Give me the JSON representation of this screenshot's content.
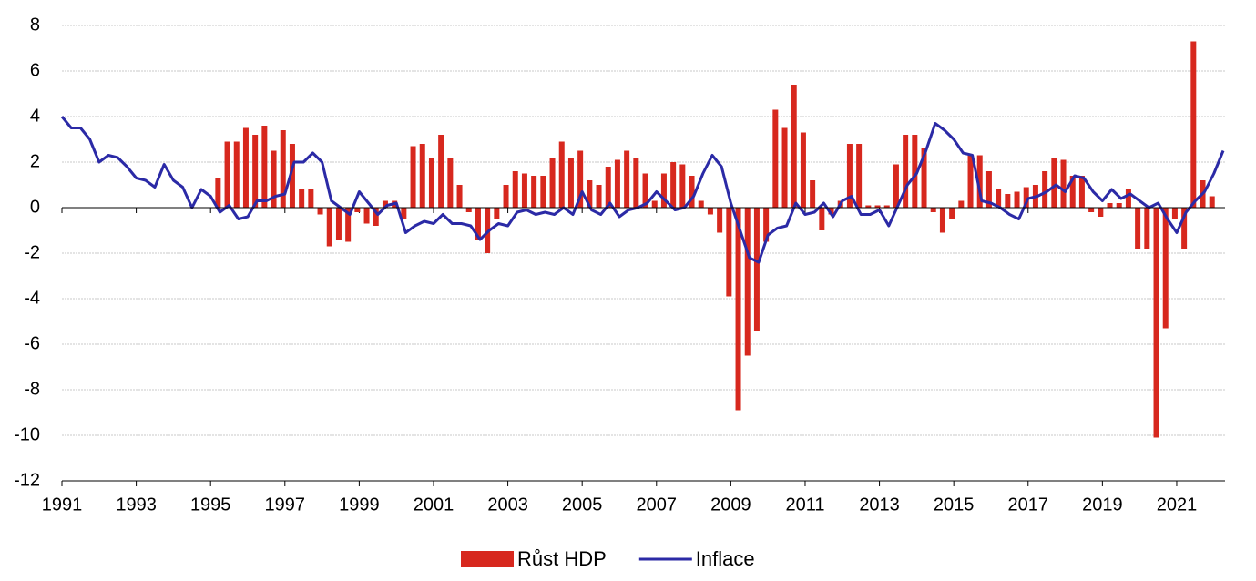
{
  "chart_data": {
    "type": "bar-line",
    "series": [
      {
        "name": "Růst HDP",
        "type": "bar",
        "color": "#d7281e",
        "x": [
          1995.2,
          1995.45,
          1995.7,
          1995.95,
          1996.2,
          1996.45,
          1996.7,
          1996.95,
          1997.2,
          1997.45,
          1997.7,
          1997.95,
          1998.2,
          1998.45,
          1998.7,
          1998.95,
          1999.2,
          1999.45,
          1999.7,
          1999.95,
          2000.2,
          2000.45,
          2000.7,
          2000.95,
          2001.2,
          2001.45,
          2001.7,
          2001.95,
          2002.2,
          2002.45,
          2002.7,
          2002.95,
          2003.2,
          2003.45,
          2003.7,
          2003.95,
          2004.2,
          2004.45,
          2004.7,
          2004.95,
          2005.2,
          2005.45,
          2005.7,
          2005.95,
          2006.2,
          2006.45,
          2006.7,
          2006.95,
          2007.2,
          2007.45,
          2007.7,
          2007.95,
          2008.2,
          2008.45,
          2008.7,
          2008.95,
          2009.2,
          2009.45,
          2009.7,
          2009.95,
          2010.2,
          2010.45,
          2010.7,
          2010.95,
          2011.2,
          2011.45,
          2011.7,
          2011.95,
          2012.2,
          2012.45,
          2012.7,
          2012.95,
          2013.2,
          2013.45,
          2013.7,
          2013.95,
          2014.2,
          2014.45,
          2014.7,
          2014.95,
          2015.2,
          2015.45,
          2015.7,
          2015.95,
          2016.2,
          2016.45,
          2016.7,
          2016.95,
          2017.2,
          2017.45,
          2017.7,
          2017.95,
          2018.2,
          2018.45,
          2018.7,
          2018.95,
          2019.2,
          2019.45,
          2019.7,
          2019.95,
          2020.2,
          2020.45,
          2020.7,
          2020.95,
          2021.2,
          2021.45,
          2021.7,
          2021.95
        ],
        "values": [
          1.3,
          2.9,
          2.9,
          3.5,
          3.2,
          3.6,
          2.5,
          3.4,
          2.8,
          0.8,
          0.8,
          -0.3,
          -1.7,
          -1.4,
          -1.5,
          -0.2,
          -0.7,
          -0.8,
          0.3,
          0.3,
          -0.5,
          2.7,
          2.8,
          2.2,
          3.2,
          2.2,
          1.0,
          -0.2,
          -1.4,
          -2.0,
          -0.5,
          1.0,
          1.6,
          1.5,
          1.4,
          1.4,
          2.2,
          2.9,
          2.2,
          2.5,
          1.2,
          1.0,
          1.8,
          2.1,
          2.5,
          2.2,
          1.5,
          0.3,
          1.5,
          2.0,
          1.9,
          1.4,
          0.3,
          -0.3,
          -1.1,
          -3.9,
          -8.9,
          -6.5,
          -5.4,
          -1.5,
          4.3,
          3.5,
          5.4,
          3.3,
          1.2,
          -1.0,
          -0.3,
          0.3,
          2.8,
          2.8,
          0.1,
          0.1,
          0.1,
          1.9,
          3.2,
          3.2,
          2.6,
          -0.2,
          -1.1,
          -0.5,
          0.3,
          2.3,
          2.3,
          1.6,
          0.8,
          0.6,
          0.7,
          0.9,
          1.0,
          1.6,
          2.2,
          2.1,
          1.4,
          1.4,
          -0.2,
          -0.4,
          0.2,
          0.2,
          0.8,
          -1.8,
          -1.8,
          -10.1,
          -5.3,
          -0.5,
          -1.8,
          7.3,
          1.2,
          0.5
        ]
      },
      {
        "name": "Inflace",
        "type": "line",
        "color": "#2b2aa6",
        "x": [
          1991,
          1991.25,
          1991.5,
          1991.75,
          1992,
          1992.25,
          1992.5,
          1992.75,
          1993,
          1993.25,
          1993.5,
          1993.75,
          1994,
          1994.25,
          1994.5,
          1994.75,
          1995,
          1995.25,
          1995.5,
          1995.75,
          1996,
          1996.25,
          1996.5,
          1996.75,
          1997,
          1997.25,
          1997.5,
          1997.75,
          1998,
          1998.25,
          1998.5,
          1998.75,
          1999,
          1999.25,
          1999.5,
          1999.75,
          2000,
          2000.25,
          2000.5,
          2000.75,
          2001,
          2001.25,
          2001.5,
          2001.75,
          2002,
          2002.25,
          2002.5,
          2002.75,
          2003,
          2003.25,
          2003.5,
          2003.75,
          2004,
          2004.25,
          2004.5,
          2004.75,
          2005,
          2005.25,
          2005.5,
          2005.75,
          2006,
          2006.25,
          2006.5,
          2006.75,
          2007,
          2007.25,
          2007.5,
          2007.75,
          2008,
          2008.25,
          2008.5,
          2008.75,
          2009,
          2009.25,
          2009.5,
          2009.75,
          2010,
          2010.25,
          2010.5,
          2010.75,
          2011,
          2011.25,
          2011.5,
          2011.75,
          2012,
          2012.25,
          2012.5,
          2012.75,
          2013,
          2013.25,
          2013.5,
          2013.75,
          2014,
          2014.25,
          2014.5,
          2014.75,
          2015,
          2015.25,
          2015.5,
          2015.75,
          2016,
          2016.25,
          2016.5,
          2016.75,
          2017,
          2017.25,
          2017.5,
          2017.75,
          2018,
          2018.25,
          2018.5,
          2018.75,
          2019,
          2019.25,
          2019.5,
          2019.75,
          2020,
          2020.25,
          2020.5,
          2020.75,
          2021,
          2021.25,
          2021.5,
          2021.75,
          2022,
          2022.25
        ],
        "values": [
          4.0,
          3.5,
          3.5,
          3.0,
          2.0,
          2.3,
          2.2,
          1.8,
          1.3,
          1.2,
          0.9,
          1.9,
          1.2,
          0.9,
          0.0,
          0.8,
          0.5,
          -0.2,
          0.1,
          -0.5,
          -0.4,
          0.3,
          0.3,
          0.5,
          0.6,
          2.0,
          2.0,
          2.4,
          2.0,
          0.3,
          0.0,
          -0.3,
          0.7,
          0.2,
          -0.3,
          0.1,
          0.2,
          -1.1,
          -0.8,
          -0.6,
          -0.7,
          -0.3,
          -0.7,
          -0.7,
          -0.8,
          -1.4,
          -1.0,
          -0.7,
          -0.8,
          -0.2,
          -0.1,
          -0.3,
          -0.2,
          -0.3,
          0.0,
          -0.3,
          0.7,
          -0.1,
          -0.3,
          0.2,
          -0.4,
          -0.1,
          0.0,
          0.2,
          0.7,
          0.3,
          -0.1,
          0.0,
          0.5,
          1.5,
          2.3,
          1.8,
          0.2,
          -1.0,
          -2.2,
          -2.4,
          -1.2,
          -0.9,
          -0.8,
          0.2,
          -0.3,
          -0.2,
          0.2,
          -0.4,
          0.3,
          0.5,
          -0.3,
          -0.3,
          -0.1,
          -0.8,
          0.1,
          1.0,
          1.5,
          2.5,
          3.7,
          3.4,
          3.0,
          2.4,
          2.3,
          0.3,
          0.2,
          0.0,
          -0.3,
          -0.5,
          0.4,
          0.5,
          0.7,
          1.0,
          0.7,
          1.4,
          1.3,
          0.7,
          0.3,
          0.8,
          0.4,
          0.6,
          0.3,
          0.0,
          0.2,
          -0.5,
          -1.1,
          -0.2,
          0.3,
          0.7,
          1.5,
          2.5
        ]
      }
    ],
    "xlim": [
      1991,
      2022.3
    ],
    "xticks": [
      1991,
      1993,
      1995,
      1997,
      1999,
      2001,
      2003,
      2005,
      2007,
      2009,
      2011,
      2013,
      2015,
      2017,
      2019,
      2021
    ],
    "ylim": [
      -12,
      8
    ],
    "yticks": [
      -12,
      -10,
      -8,
      -6,
      -4,
      -2,
      0,
      2,
      4,
      6,
      8
    ],
    "grid": true,
    "legend": "bottom"
  }
}
